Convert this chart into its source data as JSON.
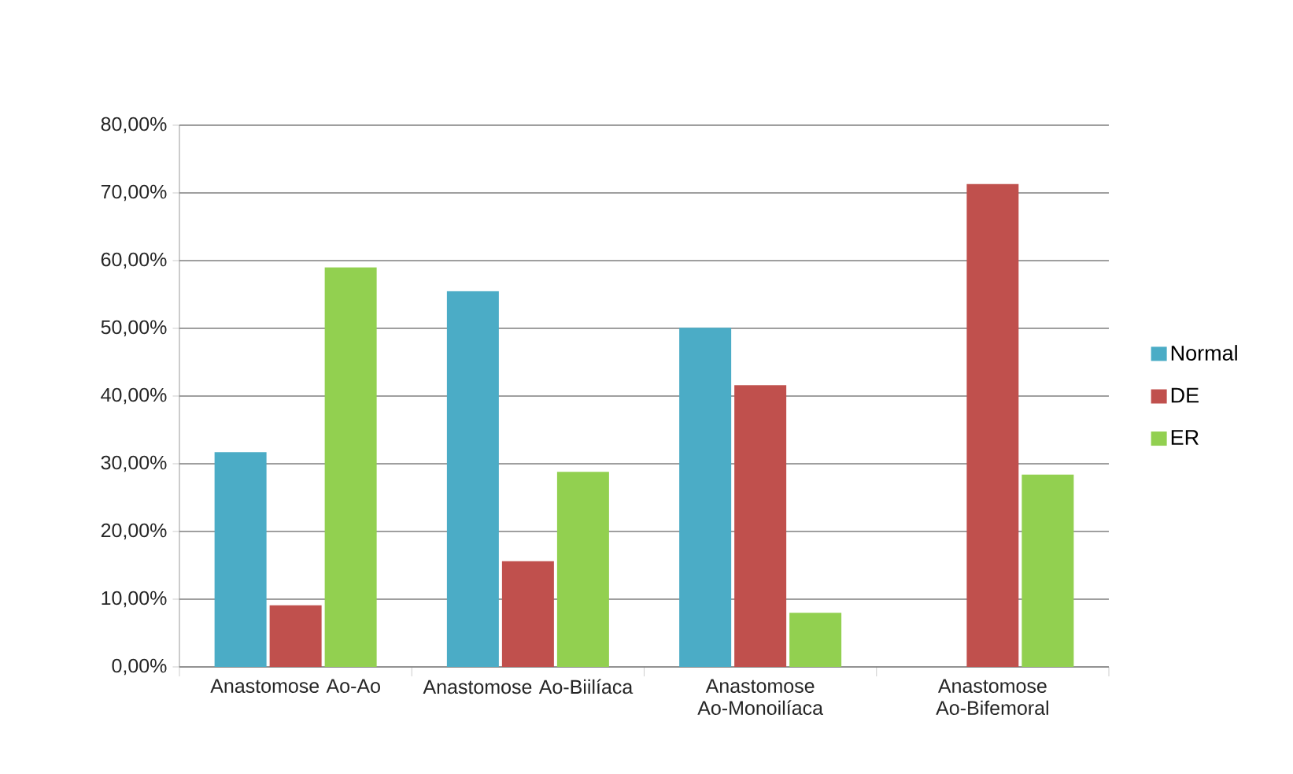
{
  "chart_data": {
    "type": "bar",
    "categories": [
      "Anastomose Ao-Ao",
      "Anastomose Ao-Biilíaca",
      "Anastomose Ao-Monoilíaca",
      "Anastomose Ao-Bifemoral"
    ],
    "series": [
      {
        "name": "Normal",
        "color": "#4bacc6",
        "values": [
          31.7,
          55.5,
          50.1,
          0
        ]
      },
      {
        "name": "DE",
        "color": "#c0504d",
        "values": [
          9.1,
          15.6,
          41.6,
          71.3
        ]
      },
      {
        "name": "ER",
        "color": "#92d050",
        "values": [
          59.0,
          28.8,
          8.0,
          28.4
        ]
      }
    ],
    "ylim": [
      0,
      80
    ],
    "yticks": [
      {
        "value": 0,
        "label": "0,00%"
      },
      {
        "value": 10,
        "label": "10,00%"
      },
      {
        "value": 20,
        "label": "20,00%"
      },
      {
        "value": 30,
        "label": "30,00%"
      },
      {
        "value": 40,
        "label": "40,00%"
      },
      {
        "value": 50,
        "label": "50,00%"
      },
      {
        "value": 60,
        "label": "60,00%"
      },
      {
        "value": 70,
        "label": "70,00%"
      },
      {
        "value": 80,
        "label": "80,00%"
      }
    ],
    "grid": "y",
    "legend": "right"
  }
}
